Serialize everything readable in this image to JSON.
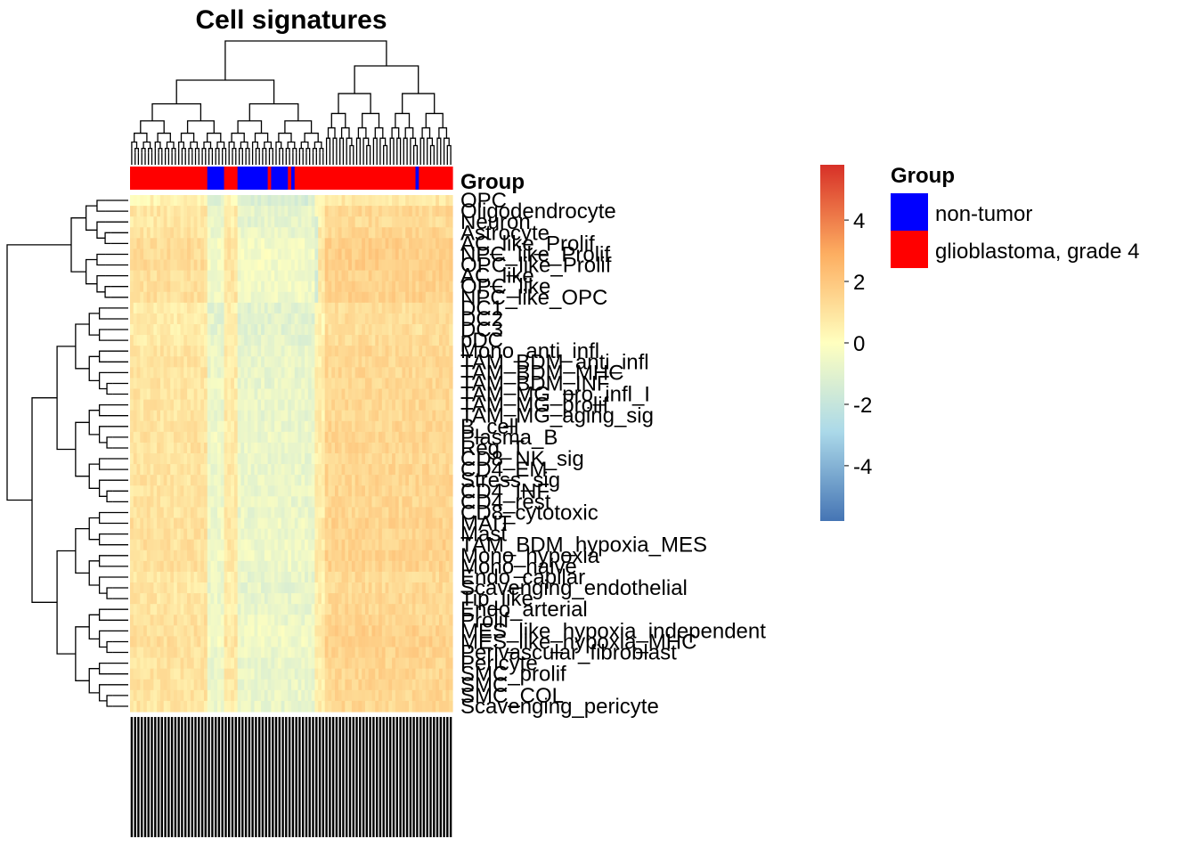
{
  "chart_data": {
    "type": "heatmap",
    "title": "Cell signatures",
    "n_columns": 96,
    "rows": [
      "OPC",
      "Oligodendrocyte",
      "Neuron",
      "Astrocyte",
      "AC_like_Prolif",
      "NPC_like_Prolif",
      "OPC_like_Prolif",
      "AC_like",
      "OPC_like",
      "NPC_like_OPC",
      "DC1",
      "DC2",
      "DC3",
      "pDC",
      "Mono_anti_infl",
      "TAM_BDM_anti_infl",
      "TAM_BDM_MHC",
      "TAM_BDM_INF",
      "TAM_MG_pro_infl_I",
      "TAM_MG_prolif",
      "TAM_MG_aging_sig",
      "B_cell",
      "Plasma_B",
      "Reg_T",
      "CD8_NK_sig",
      "CD4_EM",
      "Stress_sig",
      "CD4_INF",
      "CD4_rest",
      "CD8_cytotoxic",
      "MAIT",
      "Mast",
      "TAM_BDM_hypoxia_MES",
      "Mono_hypoxia",
      "Mono_naive",
      "Endo_capilar",
      "Scavenging_endothelial",
      "Tip_like",
      "Endo_arterial",
      "Prolif",
      "MES_like_hypoxia_independent",
      "MES_like_hypoxia_MHC",
      "Perivascular_fibroblast",
      "Pericyte",
      "SMC_prolif",
      "SMC",
      "SMC_COL",
      "Scavenging_pericyte"
    ],
    "column_groups": [
      "glioblastoma, grade 4",
      "glioblastoma, grade 4",
      "glioblastoma, grade 4",
      "glioblastoma, grade 4",
      "glioblastoma, grade 4",
      "glioblastoma, grade 4",
      "glioblastoma, grade 4",
      "glioblastoma, grade 4",
      "glioblastoma, grade 4",
      "glioblastoma, grade 4",
      "glioblastoma, grade 4",
      "glioblastoma, grade 4",
      "glioblastoma, grade 4",
      "glioblastoma, grade 4",
      "glioblastoma, grade 4",
      "glioblastoma, grade 4",
      "glioblastoma, grade 4",
      "glioblastoma, grade 4",
      "glioblastoma, grade 4",
      "glioblastoma, grade 4",
      "glioblastoma, grade 4",
      "glioblastoma, grade 4",
      "glioblastoma, grade 4",
      "non-tumor",
      "non-tumor",
      "non-tumor",
      "non-tumor",
      "non-tumor",
      "glioblastoma, grade 4",
      "glioblastoma, grade 4",
      "glioblastoma, grade 4",
      "glioblastoma, grade 4",
      "non-tumor",
      "non-tumor",
      "non-tumor",
      "non-tumor",
      "non-tumor",
      "non-tumor",
      "non-tumor",
      "non-tumor",
      "non-tumor",
      "glioblastoma, grade 4",
      "non-tumor",
      "non-tumor",
      "non-tumor",
      "non-tumor",
      "non-tumor",
      "glioblastoma, grade 4",
      "non-tumor",
      "glioblastoma, grade 4",
      "glioblastoma, grade 4",
      "glioblastoma, grade 4",
      "glioblastoma, grade 4",
      "glioblastoma, grade 4",
      "glioblastoma, grade 4",
      "glioblastoma, grade 4",
      "glioblastoma, grade 4",
      "glioblastoma, grade 4",
      "glioblastoma, grade 4",
      "glioblastoma, grade 4",
      "glioblastoma, grade 4",
      "glioblastoma, grade 4",
      "glioblastoma, grade 4",
      "glioblastoma, grade 4",
      "glioblastoma, grade 4",
      "glioblastoma, grade 4",
      "glioblastoma, grade 4",
      "glioblastoma, grade 4",
      "glioblastoma, grade 4",
      "glioblastoma, grade 4",
      "glioblastoma, grade 4",
      "glioblastoma, grade 4",
      "glioblastoma, grade 4",
      "glioblastoma, grade 4",
      "glioblastoma, grade 4",
      "glioblastoma, grade 4",
      "glioblastoma, grade 4",
      "glioblastoma, grade 4",
      "glioblastoma, grade 4",
      "glioblastoma, grade 4",
      "glioblastoma, grade 4",
      "glioblastoma, grade 4",
      "glioblastoma, grade 4",
      "glioblastoma, grade 4",
      "glioblastoma, grade 4",
      "non-tumor",
      "glioblastoma, grade 4",
      "glioblastoma, grade 4",
      "glioblastoma, grade 4",
      "glioblastoma, grade 4",
      "glioblastoma, grade 4",
      "glioblastoma, grade 4",
      "glioblastoma, grade 4",
      "glioblastoma, grade 4",
      "glioblastoma, grade 4",
      "glioblastoma, grade 4"
    ],
    "column_blocks": [
      {
        "from": 0,
        "to": 22,
        "level": 0.7
      },
      {
        "from": 23,
        "to": 27,
        "level": -1.3
      },
      {
        "from": 28,
        "to": 31,
        "level": 0.4
      },
      {
        "from": 32,
        "to": 54,
        "level": -1.4
      },
      {
        "from": 55,
        "to": 57,
        "level": 0.3
      },
      {
        "from": 58,
        "to": 95,
        "level": 1.3
      }
    ],
    "row_offsets": [
      -0.3,
      0.6,
      0.4,
      0.7,
      1.2,
      1.2,
      1.2,
      1.0,
      1.0,
      1.0,
      0.2,
      0.2,
      0.2,
      0.3,
      0.6,
      0.6,
      0.6,
      0.6,
      0.6,
      0.6,
      0.6,
      0.7,
      0.8,
      0.7,
      0.6,
      0.7,
      0.7,
      0.7,
      0.7,
      0.7,
      0.9,
      0.8,
      0.9,
      0.9,
      0.9,
      0.5,
      0.5,
      0.6,
      0.6,
      0.8,
      1.0,
      1.0,
      0.8,
      0.7,
      0.7,
      0.7,
      0.7,
      0.6
    ],
    "color_scale": {
      "min": -5.8,
      "max": 5.8,
      "low": "#4575B4",
      "mid": "#FFFFBF",
      "high": "#D73027",
      "ticks": [
        4,
        2,
        0,
        -2,
        -4
      ]
    },
    "legend": {
      "title": "Group",
      "placement": "right",
      "entries": [
        {
          "label": "non-tumor",
          "color": "#0000FF"
        },
        {
          "label": "glioblastoma, grade 4",
          "color": "#FF0000"
        }
      ]
    },
    "annotation_label": "Group"
  }
}
